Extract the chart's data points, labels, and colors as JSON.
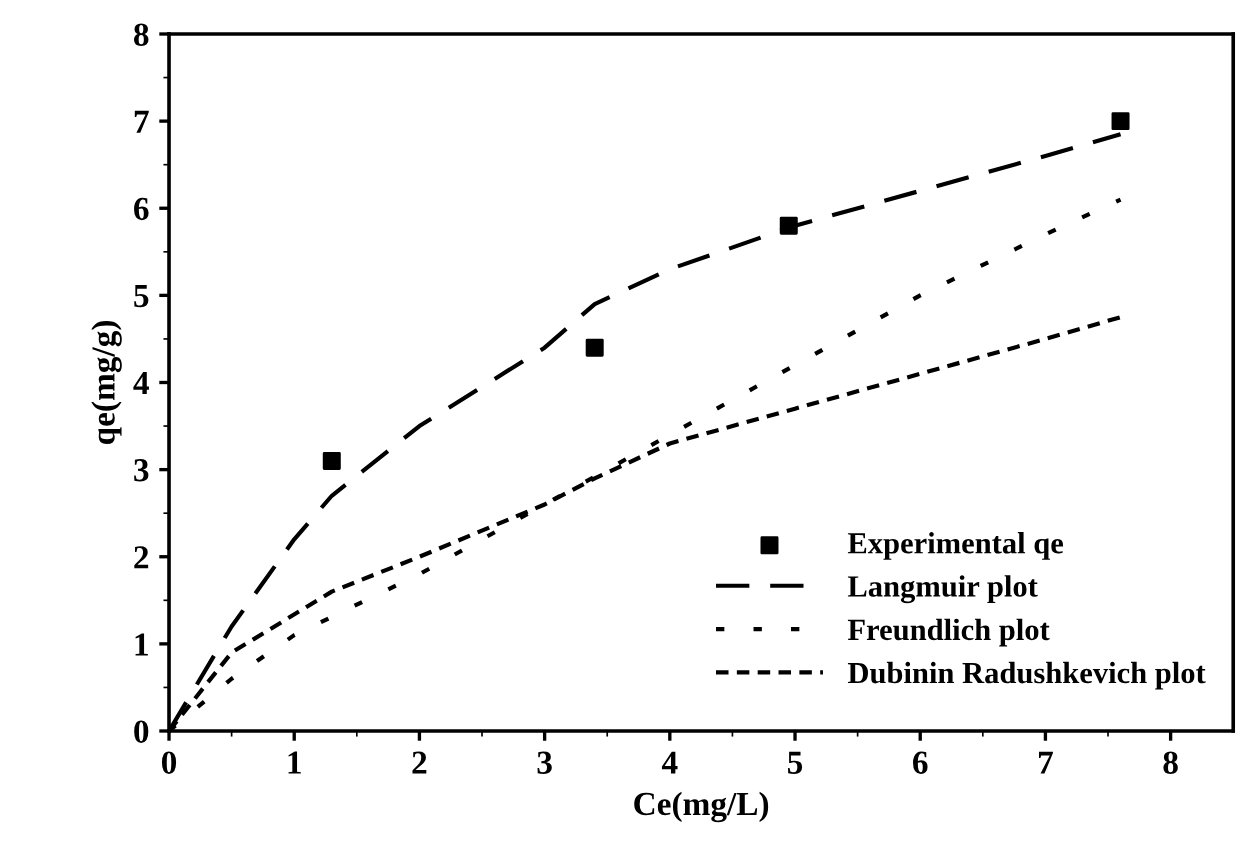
{
  "chart_data": {
    "type": "line",
    "xlabel": "Ce(mg/L)",
    "ylabel": "qe(mg/g)",
    "xlim": [
      0,
      8.5
    ],
    "ylim": [
      0,
      8
    ],
    "xticks": [
      0,
      1,
      2,
      3,
      4,
      5,
      6,
      7,
      8
    ],
    "yticks": [
      0,
      1,
      2,
      3,
      4,
      5,
      6,
      7,
      8
    ],
    "grid": false,
    "legend": "bottom right",
    "series": [
      {
        "name": "Experimental qe",
        "type": "scatter",
        "marker": "square",
        "color": "#000000",
        "x": [
          1.3,
          3.4,
          4.95,
          7.6
        ],
        "values": [
          3.1,
          4.4,
          5.8,
          7.0
        ]
      },
      {
        "name": "Langmuir plot",
        "line_style": "dashed",
        "color": "#000000",
        "x": [
          0,
          0.5,
          1,
          1.3,
          2,
          3,
          3.4,
          4,
          5,
          6,
          7,
          7.6
        ],
        "values": [
          0,
          1.2,
          2.2,
          2.7,
          3.5,
          4.4,
          4.9,
          5.3,
          5.8,
          6.2,
          6.6,
          6.85
        ]
      },
      {
        "name": "Freundlich plot",
        "line_style": "dotted",
        "color": "#000000",
        "x": [
          0,
          0.5,
          1,
          2,
          3,
          4,
          5,
          6,
          7,
          7.6
        ],
        "values": [
          0,
          0.6,
          1.1,
          1.8,
          2.6,
          3.4,
          4.2,
          5.0,
          5.7,
          6.1
        ]
      },
      {
        "name": "Dubinin Radushkevich plot",
        "line_style": "dashed_short",
        "color": "#000000",
        "x": [
          0,
          0.5,
          1.3,
          2,
          3,
          3.4,
          4,
          5,
          6,
          7,
          7.6
        ],
        "values": [
          0,
          0.9,
          1.6,
          2.0,
          2.6,
          2.9,
          3.3,
          3.7,
          4.1,
          4.5,
          4.75
        ]
      }
    ]
  }
}
